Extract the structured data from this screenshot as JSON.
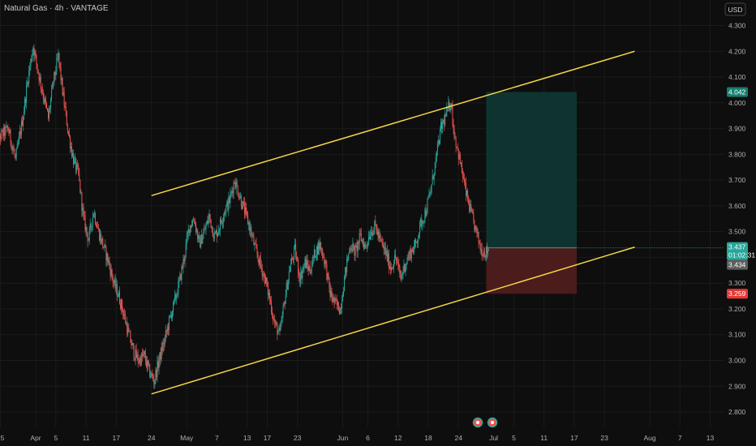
{
  "header": {
    "title": "Natural Gas · 4h · VANTAGE",
    "currency": "USD"
  },
  "colors": {
    "background": "#0e0e0e",
    "up": "#26a69a",
    "down": "#ef5350",
    "channel": "#f5d547",
    "profit_zone": "#0f3430",
    "loss_zone": "#4a1c1c",
    "last_price_tag": "#26a69a",
    "stop_tag": "#e53935",
    "target_tag": "#15806f",
    "bid_tag": "#5d5d5d"
  },
  "icons": [
    "earnings-icon",
    "dividends-icon"
  ],
  "chart_data": {
    "type": "candlestick",
    "symbol": "Natural Gas",
    "interval": "4h",
    "source": "VANTAGE",
    "y_ticks": [
      "4.300",
      "4.200",
      "4.100",
      "4.000",
      "3.900",
      "3.800",
      "3.700",
      "3.600",
      "3.500",
      "3.400",
      "3.300",
      "3.200",
      "3.100",
      "3.000",
      "2.900",
      "2.800"
    ],
    "ylim": [
      2.79,
      4.33
    ],
    "x_ticks": [
      {
        "label": "25",
        "day": -7
      },
      {
        "label": "Apr",
        "day": 0
      },
      {
        "label": "5",
        "day": 4
      },
      {
        "label": "11",
        "day": 10
      },
      {
        "label": "17",
        "day": 16
      },
      {
        "label": "24",
        "day": 23
      },
      {
        "label": "May",
        "day": 30
      },
      {
        "label": "7",
        "day": 36
      },
      {
        "label": "13",
        "day": 42
      },
      {
        "label": "17",
        "day": 46
      },
      {
        "label": "23",
        "day": 52
      },
      {
        "label": "Jun",
        "day": 61
      },
      {
        "label": "6",
        "day": 66
      },
      {
        "label": "12",
        "day": 72
      },
      {
        "label": "18",
        "day": 78
      },
      {
        "label": "24",
        "day": 84
      },
      {
        "label": "Jul",
        "day": 91
      },
      {
        "label": "5",
        "day": 95
      },
      {
        "label": "11",
        "day": 101
      },
      {
        "label": "17",
        "day": 107
      },
      {
        "label": "23",
        "day": 113
      },
      {
        "label": "Aug",
        "day": 122
      },
      {
        "label": "7",
        "day": 128
      },
      {
        "label": "13",
        "day": 134
      }
    ],
    "price_path": [
      {
        "day": -8.5,
        "price": 3.92
      },
      {
        "day": -7,
        "price": 3.87
      },
      {
        "day": -5.5,
        "price": 3.9
      },
      {
        "day": -4,
        "price": 3.78
      },
      {
        "day": -2.5,
        "price": 3.95
      },
      {
        "day": -1.5,
        "price": 4.1
      },
      {
        "day": -0.5,
        "price": 4.22
      },
      {
        "day": 0.5,
        "price": 4.12
      },
      {
        "day": 1.5,
        "price": 4.03
      },
      {
        "day": 2.5,
        "price": 3.94
      },
      {
        "day": 3.5,
        "price": 4.08
      },
      {
        "day": 4.5,
        "price": 4.18
      },
      {
        "day": 5.5,
        "price": 4.02
      },
      {
        "day": 6.5,
        "price": 3.88
      },
      {
        "day": 7.5,
        "price": 3.78
      },
      {
        "day": 8.5,
        "price": 3.72
      },
      {
        "day": 9.5,
        "price": 3.55
      },
      {
        "day": 10.5,
        "price": 3.47
      },
      {
        "day": 11.5,
        "price": 3.58
      },
      {
        "day": 12.5,
        "price": 3.5
      },
      {
        "day": 13.5,
        "price": 3.44
      },
      {
        "day": 14.5,
        "price": 3.38
      },
      {
        "day": 15.5,
        "price": 3.3
      },
      {
        "day": 16.5,
        "price": 3.25
      },
      {
        "day": 17.5,
        "price": 3.18
      },
      {
        "day": 18.5,
        "price": 3.1
      },
      {
        "day": 19.5,
        "price": 3.03
      },
      {
        "day": 20.5,
        "price": 3.0
      },
      {
        "day": 21.5,
        "price": 3.02
      },
      {
        "day": 22.5,
        "price": 2.96
      },
      {
        "day": 23.5,
        "price": 2.92
      },
      {
        "day": 24.5,
        "price": 3.0
      },
      {
        "day": 25.5,
        "price": 3.07
      },
      {
        "day": 26.5,
        "price": 3.15
      },
      {
        "day": 27.5,
        "price": 3.22
      },
      {
        "day": 28.5,
        "price": 3.3
      },
      {
        "day": 29.5,
        "price": 3.4
      },
      {
        "day": 30.5,
        "price": 3.52
      },
      {
        "day": 31.5,
        "price": 3.55
      },
      {
        "day": 32.5,
        "price": 3.45
      },
      {
        "day": 33.5,
        "price": 3.5
      },
      {
        "day": 34.5,
        "price": 3.56
      },
      {
        "day": 35.5,
        "price": 3.48
      },
      {
        "day": 36.5,
        "price": 3.52
      },
      {
        "day": 37.5,
        "price": 3.58
      },
      {
        "day": 38.5,
        "price": 3.62
      },
      {
        "day": 39.5,
        "price": 3.7
      },
      {
        "day": 40.5,
        "price": 3.64
      },
      {
        "day": 41.5,
        "price": 3.58
      },
      {
        "day": 42.5,
        "price": 3.52
      },
      {
        "day": 43.5,
        "price": 3.44
      },
      {
        "day": 44.5,
        "price": 3.38
      },
      {
        "day": 45.5,
        "price": 3.32
      },
      {
        "day": 46.5,
        "price": 3.24
      },
      {
        "day": 47.5,
        "price": 3.14
      },
      {
        "day": 48.5,
        "price": 3.1
      },
      {
        "day": 49.5,
        "price": 3.24
      },
      {
        "day": 50.5,
        "price": 3.36
      },
      {
        "day": 51.5,
        "price": 3.43
      },
      {
        "day": 52.5,
        "price": 3.32
      },
      {
        "day": 53.5,
        "price": 3.38
      },
      {
        "day": 54.5,
        "price": 3.35
      },
      {
        "day": 55.5,
        "price": 3.42
      },
      {
        "day": 56.5,
        "price": 3.45
      },
      {
        "day": 57.5,
        "price": 3.38
      },
      {
        "day": 58.5,
        "price": 3.26
      },
      {
        "day": 59.5,
        "price": 3.22
      },
      {
        "day": 60.5,
        "price": 3.2
      },
      {
        "day": 61.5,
        "price": 3.34
      },
      {
        "day": 62.5,
        "price": 3.45
      },
      {
        "day": 63.5,
        "price": 3.42
      },
      {
        "day": 64.5,
        "price": 3.48
      },
      {
        "day": 65.5,
        "price": 3.44
      },
      {
        "day": 66.5,
        "price": 3.5
      },
      {
        "day": 67.5,
        "price": 3.52
      },
      {
        "day": 68.5,
        "price": 3.46
      },
      {
        "day": 69.5,
        "price": 3.42
      },
      {
        "day": 70.5,
        "price": 3.36
      },
      {
        "day": 71.5,
        "price": 3.4
      },
      {
        "day": 72.5,
        "price": 3.32
      },
      {
        "day": 73.5,
        "price": 3.38
      },
      {
        "day": 74.5,
        "price": 3.42
      },
      {
        "day": 75.5,
        "price": 3.45
      },
      {
        "day": 76.5,
        "price": 3.53
      },
      {
        "day": 77.5,
        "price": 3.58
      },
      {
        "day": 78.5,
        "price": 3.66
      },
      {
        "day": 79.5,
        "price": 3.78
      },
      {
        "day": 80.5,
        "price": 3.9
      },
      {
        "day": 81.5,
        "price": 3.95
      },
      {
        "day": 82.5,
        "price": 4.01
      },
      {
        "day": 83.0,
        "price": 3.9
      },
      {
        "day": 83.5,
        "price": 3.85
      },
      {
        "day": 84.5,
        "price": 3.75
      },
      {
        "day": 85.5,
        "price": 3.65
      },
      {
        "day": 86.5,
        "price": 3.57
      },
      {
        "day": 87.5,
        "price": 3.5
      },
      {
        "day": 88.5,
        "price": 3.43
      },
      {
        "day": 89.5,
        "price": 3.42
      },
      {
        "day": 90.0,
        "price": 3.437
      }
    ],
    "channel_upper": [
      {
        "day": 23,
        "price": 3.64
      },
      {
        "day": 119,
        "price": 4.2
      }
    ],
    "channel_lower": [
      {
        "day": 23,
        "price": 2.87
      },
      {
        "day": 119,
        "price": 3.44
      }
    ],
    "position": {
      "type": "long",
      "start_day": 89.5,
      "end_day": 107.5,
      "entry": 3.437,
      "target": 4.042,
      "stop": 3.259
    },
    "price_tags": {
      "target": "4.042",
      "last_price": "3.437",
      "countdown": "01:02:31",
      "bid": "3.434",
      "stop": "3.259"
    }
  }
}
